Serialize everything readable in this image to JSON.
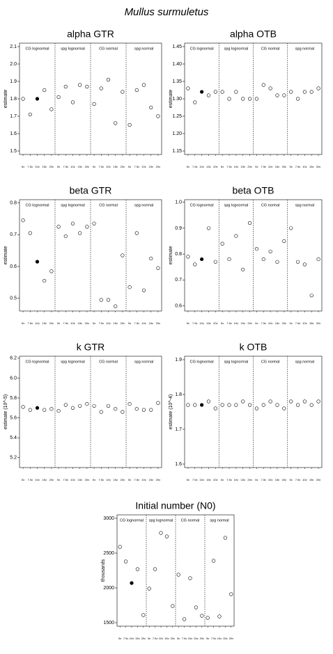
{
  "title": "Mullus surmuletus",
  "chart_data": [
    {
      "type": "scatter",
      "title": "alpha GTR",
      "ylabel": "estimate",
      "sections": [
        "CG lognormal",
        "spg lognormal",
        "CG normal",
        "spg normal"
      ],
      "categories": [
        "5x",
        "7.5x",
        "10x",
        "15x",
        "20x",
        "5x",
        "7.5x",
        "10x",
        "15x",
        "20x",
        "5x",
        "7.5x",
        "10x",
        "15x",
        "20x",
        "5x",
        "7.5x",
        "10x",
        "15x",
        "20x"
      ],
      "values": [
        1.8,
        1.71,
        1.8,
        1.85,
        1.74,
        1.81,
        1.87,
        1.78,
        1.88,
        1.87,
        1.77,
        1.86,
        1.91,
        1.66,
        1.84,
        1.65,
        1.85,
        1.88,
        1.75,
        1.7
      ],
      "colors": [
        "white",
        "white",
        "black",
        "white",
        "white",
        "white",
        "white",
        "white",
        "white",
        "white",
        "white",
        "white",
        "white",
        "white",
        "white",
        "white",
        "white",
        "white",
        "white",
        "white"
      ],
      "ylim": [
        1.48,
        2.12
      ],
      "yticks": [
        1.5,
        1.6,
        1.7,
        1.8,
        1.9,
        {
          "value": 2.0,
          "label": "2.0"
        },
        2.1
      ]
    },
    {
      "type": "scatter",
      "title": "alpha OTB",
      "ylabel": "estimate",
      "sections": [
        "CG lognormal",
        "spg lognormal",
        "CG normal",
        "spg normal"
      ],
      "categories": [
        "5x",
        "7.5x",
        "10x",
        "15x",
        "20x",
        "5x",
        "7.5x",
        "10x",
        "15x",
        "20x",
        "5x",
        "7.5x",
        "10x",
        "15x",
        "20x",
        "5x",
        "7.5x",
        "10x",
        "15x",
        "20x"
      ],
      "values": [
        1.33,
        1.29,
        1.32,
        1.31,
        1.32,
        1.32,
        1.3,
        1.32,
        1.3,
        1.3,
        1.3,
        1.34,
        1.33,
        1.31,
        1.31,
        1.32,
        1.3,
        1.32,
        1.32,
        1.33
      ],
      "colors": [
        "white",
        "white",
        "black",
        "white",
        "white",
        "white",
        "white",
        "white",
        "white",
        "white",
        "white",
        "white",
        "white",
        "white",
        "white",
        "white",
        "white",
        "white",
        "white",
        "white"
      ],
      "ylim": [
        1.14,
        1.46
      ],
      "yticks": [
        1.15,
        {
          "value": 1.2,
          "label": "1.20"
        },
        1.25,
        {
          "value": 1.3,
          "label": "1.30"
        },
        1.35,
        {
          "value": 1.4,
          "label": "1.40"
        },
        1.45
      ]
    },
    {
      "type": "scatter",
      "title": "beta GTR",
      "ylabel": "estimate",
      "sections": [
        "CG lognormal",
        "spg lognormal",
        "CG normal",
        "spg normal"
      ],
      "categories": [
        "5x",
        "7.5x",
        "10x",
        "15x",
        "20x",
        "5x",
        "7.5x",
        "10x",
        "15x",
        "20x",
        "5x",
        "7.5x",
        "10x",
        "15x",
        "20x",
        "5x",
        "7.5x",
        "10x",
        "15x",
        "20x"
      ],
      "values": [
        0.745,
        0.705,
        0.615,
        0.555,
        0.585,
        0.725,
        0.695,
        0.735,
        0.705,
        0.725,
        0.735,
        0.495,
        0.495,
        0.475,
        0.635,
        0.535,
        0.705,
        0.525,
        0.625,
        0.595
      ],
      "colors": [
        "white",
        "white",
        "black",
        "white",
        "white",
        "white",
        "white",
        "white",
        "white",
        "white",
        "white",
        "white",
        "white",
        "white",
        "white",
        "white",
        "white",
        "white",
        "white",
        "white"
      ],
      "ylim": [
        0.46,
        0.81
      ],
      "yticks": [
        0.5,
        0.6,
        0.7,
        0.8
      ]
    },
    {
      "type": "scatter",
      "title": "beta OTB",
      "ylabel": "estimate",
      "sections": [
        "CG lognormal",
        "spg lognormal",
        "CG normal",
        "spg normal"
      ],
      "categories": [
        "5x",
        "7.5x",
        "10x",
        "15x",
        "20x",
        "5x",
        "7.5x",
        "10x",
        "15x",
        "20x",
        "5x",
        "7.5x",
        "10x",
        "15x",
        "20x",
        "5x",
        "7.5x",
        "10x",
        "15x",
        "20x"
      ],
      "values": [
        0.79,
        0.76,
        0.78,
        0.9,
        0.77,
        0.84,
        0.78,
        0.87,
        0.74,
        0.92,
        0.82,
        0.78,
        0.81,
        0.77,
        0.85,
        0.9,
        0.77,
        0.76,
        0.64,
        0.78
      ],
      "colors": [
        "white",
        "white",
        "black",
        "white",
        "white",
        "white",
        "white",
        "white",
        "white",
        "white",
        "white",
        "white",
        "white",
        "white",
        "white",
        "white",
        "white",
        "white",
        "white",
        "white"
      ],
      "ylim": [
        0.58,
        1.01
      ],
      "yticks": [
        0.6,
        0.7,
        0.8,
        0.9,
        {
          "value": 1.0,
          "label": "1.0"
        }
      ]
    },
    {
      "type": "scatter",
      "title": "k GTR",
      "ylabel": "estimate (10^-5)",
      "sections": [
        "CG lognormal",
        "spg lognormal",
        "CG normal",
        "spg normal"
      ],
      "categories": [
        "5x",
        "7.5x",
        "10x",
        "15x",
        "20x",
        "5x",
        "7.5x",
        "10x",
        "15x",
        "20x",
        "5x",
        "7.5x",
        "10x",
        "15x",
        "20x",
        "5x",
        "7.5x",
        "10x",
        "15x",
        "20x"
      ],
      "values": [
        5.71,
        5.68,
        5.7,
        5.68,
        5.69,
        5.67,
        5.73,
        5.7,
        5.72,
        5.74,
        5.72,
        5.66,
        5.72,
        5.69,
        5.66,
        5.74,
        5.69,
        5.68,
        5.68,
        5.75
      ],
      "colors": [
        "white",
        "white",
        "black",
        "white",
        "white",
        "white",
        "white",
        "white",
        "white",
        "white",
        "white",
        "white",
        "white",
        "white",
        "white",
        "white",
        "white",
        "white",
        "white",
        "white"
      ],
      "ylim": [
        5.1,
        6.22
      ],
      "yticks": [
        5.2,
        5.4,
        5.6,
        5.8,
        {
          "value": 6.0,
          "label": "6.0"
        },
        6.2
      ]
    },
    {
      "type": "scatter",
      "title": "k OTB",
      "ylabel": "estimate (10^-4)",
      "sections": [
        "CG lognormal",
        "spg lognormal",
        "CG normal",
        "spg normal"
      ],
      "categories": [
        "5x",
        "7.5x",
        "10x",
        "15x",
        "20x",
        "5x",
        "7.5x",
        "10x",
        "15x",
        "20x",
        "5x",
        "7.5x",
        "10x",
        "15x",
        "20x",
        "5x",
        "7.5x",
        "10x",
        "15x",
        "20x"
      ],
      "values": [
        1.77,
        1.77,
        1.77,
        1.78,
        1.76,
        1.77,
        1.77,
        1.77,
        1.78,
        1.77,
        1.76,
        1.77,
        1.78,
        1.77,
        1.76,
        1.78,
        1.77,
        1.78,
        1.77,
        1.78
      ],
      "colors": [
        "white",
        "white",
        "black",
        "white",
        "white",
        "white",
        "white",
        "white",
        "white",
        "white",
        "white",
        "white",
        "white",
        "white",
        "white",
        "white",
        "white",
        "white",
        "white",
        "white"
      ],
      "ylim": [
        1.59,
        1.91
      ],
      "yticks": [
        1.6,
        1.7,
        1.8,
        1.9
      ]
    },
    {
      "type": "scatter",
      "title": "Initial number (N0)",
      "ylabel": "thousands",
      "sections": [
        "CG lognormal",
        "spg lognormal",
        "CG normal",
        "spg normal"
      ],
      "categories": [
        "5x",
        "7.5x",
        "10x",
        "15x",
        "20x",
        "5x",
        "7.5x",
        "10x",
        "15x",
        "20x",
        "5x",
        "7.5x",
        "10x",
        "15x",
        "20x",
        "5x",
        "7.5x",
        "10x",
        "15x",
        "20x"
      ],
      "values": [
        2590,
        2380,
        2070,
        2270,
        1610,
        1990,
        2270,
        2790,
        2740,
        1740,
        2190,
        1550,
        2140,
        1720,
        1600,
        1570,
        2390,
        1590,
        2720,
        1910
      ],
      "colors": [
        "white",
        "white",
        "black",
        "white",
        "white",
        "white",
        "white",
        "white",
        "white",
        "white",
        "white",
        "white",
        "white",
        "white",
        "white",
        "white",
        "white",
        "white",
        "white",
        "white"
      ],
      "ylim": [
        1450,
        3050
      ],
      "yticks": [
        1500,
        2000,
        2500,
        3000
      ]
    }
  ]
}
